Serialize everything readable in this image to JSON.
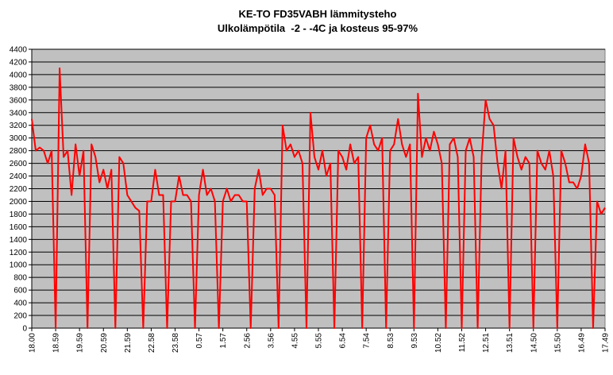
{
  "chart_data": {
    "type": "line",
    "title": "KE-TO FD35VABH lämmitysteho",
    "subtitle": "Ulkolämpötila  -2 - -4C ja kosteus 95-97%",
    "categories": [
      "18.00",
      null,
      null,
      null,
      null,
      null,
      "18.59",
      null,
      null,
      null,
      null,
      null,
      "19.59",
      null,
      null,
      null,
      null,
      null,
      "20.59",
      null,
      null,
      null,
      null,
      null,
      "21.59",
      null,
      null,
      null,
      null,
      null,
      "22.58",
      null,
      null,
      null,
      null,
      null,
      "23.58",
      null,
      null,
      null,
      null,
      null,
      "0.57",
      null,
      null,
      null,
      null,
      null,
      "1.57",
      null,
      null,
      null,
      null,
      null,
      "2.56",
      null,
      null,
      null,
      null,
      null,
      "3.56",
      null,
      null,
      null,
      null,
      null,
      "4.55",
      null,
      null,
      null,
      null,
      null,
      "5.55",
      null,
      null,
      null,
      null,
      null,
      "6.54",
      null,
      null,
      null,
      null,
      null,
      "7.54",
      null,
      null,
      null,
      null,
      null,
      "8.53",
      null,
      null,
      null,
      null,
      null,
      "9.53",
      null,
      null,
      null,
      null,
      null,
      "10.52",
      null,
      null,
      null,
      null,
      null,
      "11.52",
      null,
      null,
      null,
      null,
      null,
      "12.51",
      null,
      null,
      null,
      null,
      null,
      "13.51",
      null,
      null,
      null,
      null,
      null,
      "14.50",
      null,
      null,
      null,
      null,
      null,
      "15.50",
      null,
      null,
      null,
      null,
      null,
      "16.49",
      null,
      null,
      null,
      null,
      null,
      "17.49"
    ],
    "series": [
      {
        "color": "#ff0000",
        "values": [
          3300,
          2800,
          2850,
          2800,
          2600,
          2800,
          0,
          4100,
          2700,
          2800,
          2100,
          2900,
          2400,
          2800,
          0,
          2900,
          2700,
          2300,
          2500,
          2200,
          2500,
          0,
          2700,
          2600,
          2100,
          2000,
          1900,
          1850,
          0,
          2000,
          2000,
          2500,
          2100,
          2100,
          0,
          2000,
          2000,
          2400,
          2100,
          2100,
          2000,
          0,
          2100,
          2500,
          2100,
          2200,
          2000,
          0,
          2000,
          2200,
          2000,
          2100,
          2100,
          2000,
          2000,
          0,
          2200,
          2500,
          2100,
          2200,
          2200,
          2100,
          0,
          3200,
          2800,
          2900,
          2700,
          2800,
          2600,
          0,
          3400,
          2700,
          2500,
          2800,
          2400,
          2600,
          0,
          2800,
          2700,
          2500,
          2900,
          2600,
          2700,
          0,
          3000,
          3200,
          2900,
          2800,
          3000,
          0,
          2800,
          2900,
          3300,
          2900,
          2700,
          2900,
          0,
          3700,
          2700,
          3000,
          2800,
          3100,
          2900,
          2600,
          0,
          2900,
          3000,
          2700,
          0,
          2800,
          3000,
          2700,
          0,
          2700,
          3600,
          3300,
          3200,
          2600,
          2200,
          2800,
          0,
          3000,
          2700,
          2500,
          2700,
          2600,
          0,
          2800,
          2600,
          2500,
          2800,
          2400,
          0,
          2800,
          2600,
          2300,
          2300,
          2200,
          2400,
          2900,
          2600,
          0,
          2000,
          1800,
          1900
        ]
      }
    ],
    "ylim": [
      0,
      4400
    ],
    "yticks": [
      0,
      200,
      400,
      600,
      800,
      1000,
      1200,
      1400,
      1600,
      1800,
      2000,
      2200,
      2400,
      2600,
      2800,
      3000,
      3200,
      3400,
      3600,
      3800,
      4000,
      4200,
      4400
    ],
    "grid": true,
    "plot_background": "#c0c0c0"
  }
}
